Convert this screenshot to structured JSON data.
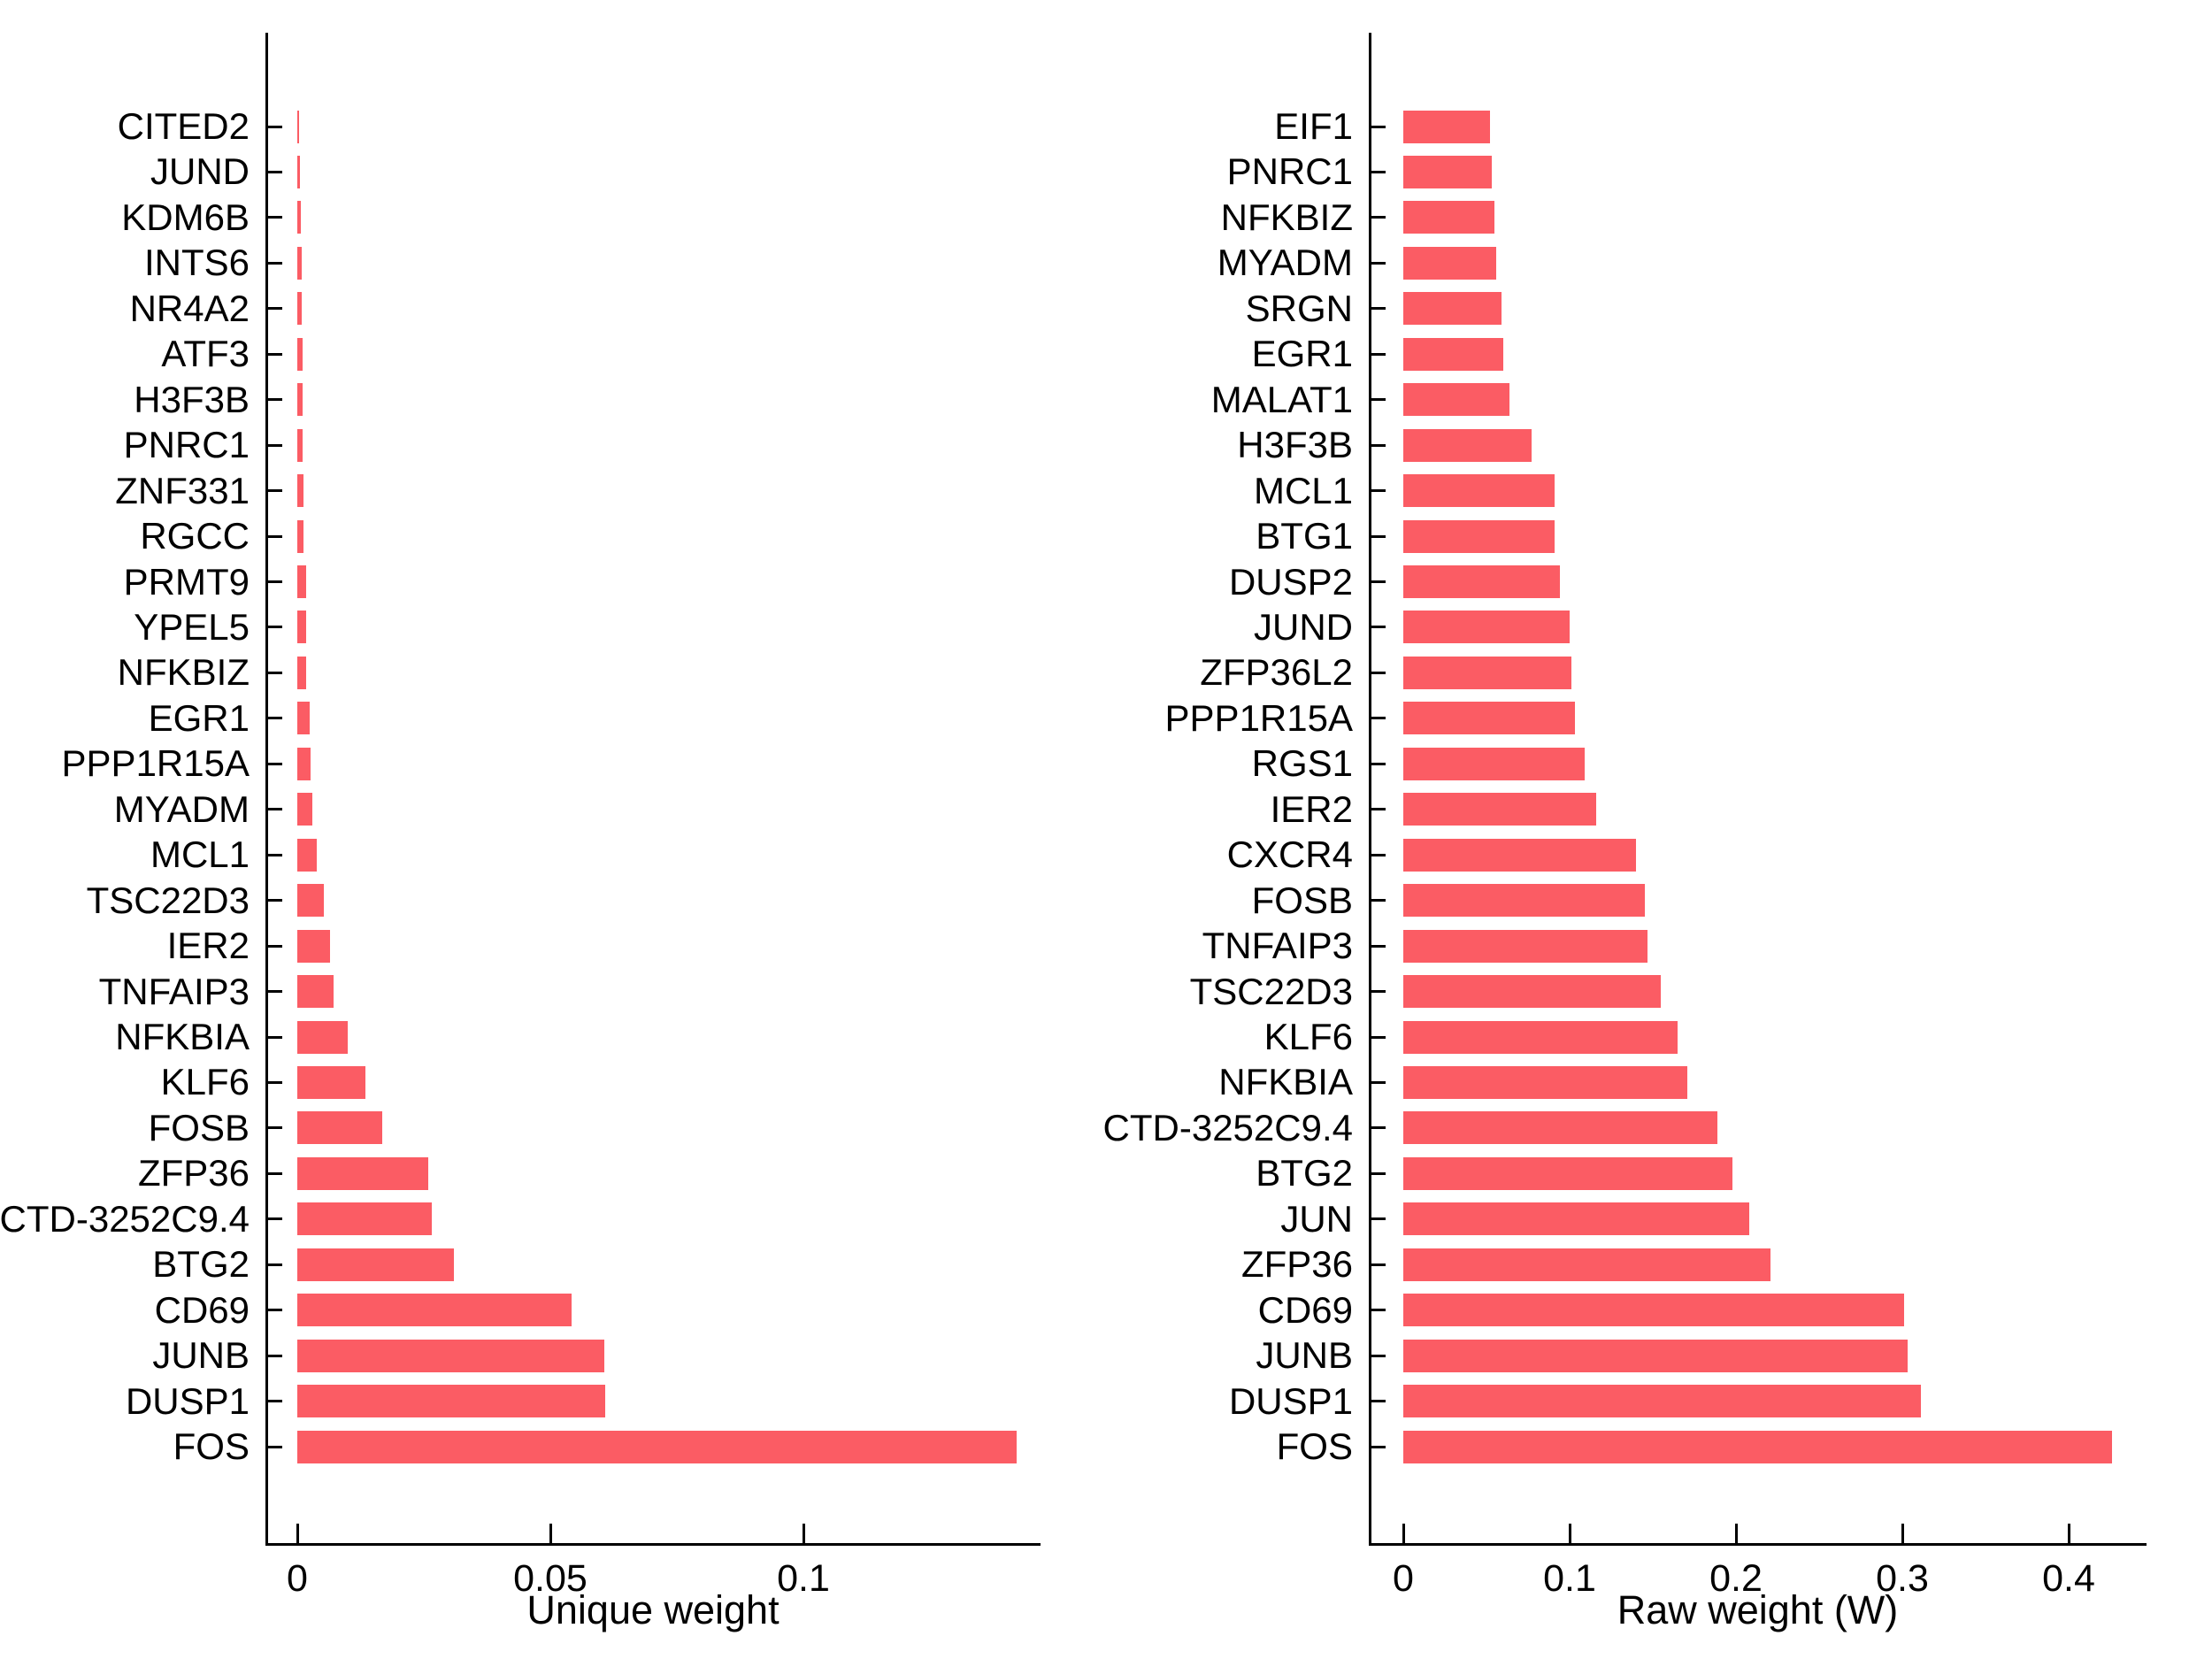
{
  "figure": {
    "background": "#ffffff",
    "bar_color": "#FB5C64",
    "axis_color": "#000000",
    "text_color": "#000000"
  },
  "chart_data": [
    {
      "type": "bar",
      "orientation": "horizontal",
      "title": "",
      "xlabel": "Unique weight",
      "ylabel": "",
      "xlim": [
        0,
        0.147
      ],
      "grid": false,
      "legend": null,
      "xticks": [
        {
          "value": 0,
          "label": "0"
        },
        {
          "value": 0.05,
          "label": "0.05"
        },
        {
          "value": 0.1,
          "label": "0.1"
        }
      ],
      "categories_top_to_bottom": [
        "CITED2",
        "JUND",
        "KDM6B",
        "INTS6",
        "NR4A2",
        "ATF3",
        "H3F3B",
        "PNRC1",
        "ZNF331",
        "RGCC",
        "PRMT9",
        "YPEL5",
        "NFKBIZ",
        "EGR1",
        "PPP1R15A",
        "MYADM",
        "MCL1",
        "TSC22D3",
        "IER2",
        "TNFAIP3",
        "NFKBIA",
        "KLF6",
        "FOSB",
        "ZFP36",
        "CTD-3252C9.4",
        "BTG2",
        "CD69",
        "JUNB",
        "DUSP1",
        "FOS"
      ],
      "values": [
        0.0004,
        0.0005,
        0.0007,
        0.0008,
        0.0009,
        0.001,
        0.0011,
        0.0011,
        0.0012,
        0.0013,
        0.0017,
        0.0017,
        0.0018,
        0.0024,
        0.0027,
        0.003,
        0.0039,
        0.0052,
        0.0064,
        0.0071,
        0.0099,
        0.0135,
        0.0167,
        0.0259,
        0.0266,
        0.031,
        0.0542,
        0.0607,
        0.0608,
        0.1421
      ]
    },
    {
      "type": "bar",
      "orientation": "horizontal",
      "title": "",
      "xlabel": "Raw weight (W)",
      "ylabel": "",
      "xlim": [
        0,
        0.447
      ],
      "grid": false,
      "legend": null,
      "xticks": [
        {
          "value": 0,
          "label": "0"
        },
        {
          "value": 0.1,
          "label": "0.1"
        },
        {
          "value": 0.2,
          "label": "0.2"
        },
        {
          "value": 0.3,
          "label": "0.3"
        },
        {
          "value": 0.4,
          "label": "0.4"
        }
      ],
      "categories_top_to_bottom": [
        "EIF1",
        "PNRC1",
        "NFKBIZ",
        "MYADM",
        "SRGN",
        "EGR1",
        "MALAT1",
        "H3F3B",
        "MCL1",
        "BTG1",
        "DUSP2",
        "JUND",
        "ZFP36L2",
        "PPP1R15A",
        "RGS1",
        "IER2",
        "CXCR4",
        "FOSB",
        "TNFAIP3",
        "TSC22D3",
        "KLF6",
        "NFKBIA",
        "CTD-3252C9.4",
        "BTG2",
        "JUN",
        "ZFP36",
        "CD69",
        "JUNB",
        "DUSP1",
        "FOS"
      ],
      "values": [
        0.052,
        0.053,
        0.055,
        0.056,
        0.059,
        0.06,
        0.064,
        0.077,
        0.091,
        0.091,
        0.094,
        0.1,
        0.101,
        0.103,
        0.109,
        0.116,
        0.14,
        0.145,
        0.147,
        0.155,
        0.165,
        0.171,
        0.189,
        0.198,
        0.208,
        0.221,
        0.301,
        0.303,
        0.311,
        0.426
      ]
    }
  ]
}
